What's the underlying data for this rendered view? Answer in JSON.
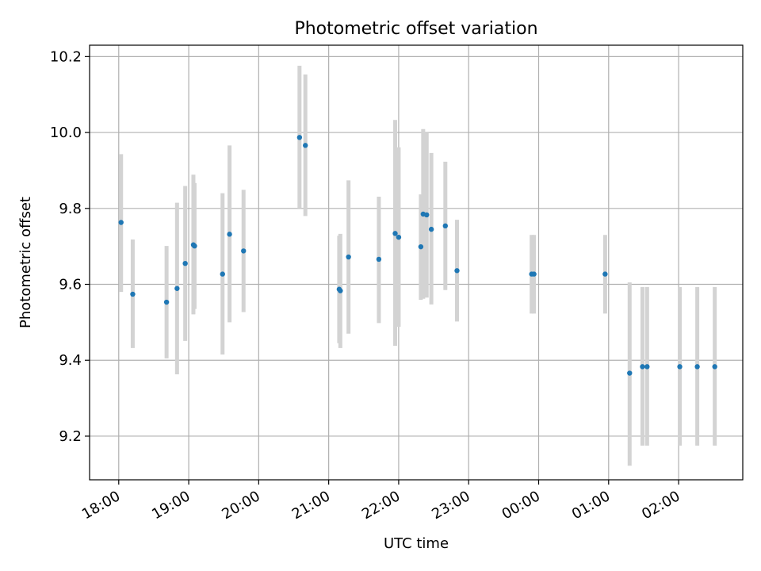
{
  "chart_data": {
    "type": "scatter",
    "title": "Photometric offset variation",
    "xlabel": "UTC time",
    "ylabel": "Photometric offset",
    "x_axis_type": "time",
    "xlim": [
      "17:35",
      "02:55"
    ],
    "ylim": [
      9.085,
      10.23
    ],
    "x_ticks": [
      "18:00",
      "19:00",
      "20:00",
      "21:00",
      "22:00",
      "23:00",
      "00:00",
      "01:00",
      "02:00"
    ],
    "y_ticks": [
      9.2,
      9.4,
      9.6,
      9.8,
      10.0,
      10.2
    ],
    "grid": true,
    "legend": "none",
    "point_color": "#1f77b4",
    "errorbar_color": "#d3d3d3",
    "points": [
      {
        "time": "18:02",
        "y": 9.763,
        "err_low": 9.58,
        "err_high": 9.943
      },
      {
        "time": "18:12",
        "y": 9.574,
        "err_low": 9.432,
        "err_high": 9.718
      },
      {
        "time": "18:41",
        "y": 9.553,
        "err_low": 9.405,
        "err_high": 9.701
      },
      {
        "time": "18:50",
        "y": 9.589,
        "err_low": 9.363,
        "err_high": 9.815
      },
      {
        "time": "18:57",
        "y": 9.655,
        "err_low": 9.451,
        "err_high": 9.859
      },
      {
        "time": "19:04",
        "y": 9.704,
        "err_low": 9.521,
        "err_high": 9.889
      },
      {
        "time": "19:05",
        "y": 9.701,
        "err_low": 9.535,
        "err_high": 9.867
      },
      {
        "time": "19:29",
        "y": 9.627,
        "err_low": 9.415,
        "err_high": 9.84
      },
      {
        "time": "19:35",
        "y": 9.732,
        "err_low": 9.5,
        "err_high": 9.966
      },
      {
        "time": "19:47",
        "y": 9.688,
        "err_low": 9.527,
        "err_high": 9.849
      },
      {
        "time": "20:35",
        "y": 9.987,
        "err_low": 9.8,
        "err_high": 10.176
      },
      {
        "time": "20:40",
        "y": 9.966,
        "err_low": 9.78,
        "err_high": 10.153
      },
      {
        "time": "21:09",
        "y": 9.587,
        "err_low": 9.445,
        "err_high": 9.728
      },
      {
        "time": "21:10",
        "y": 9.583,
        "err_low": 9.432,
        "err_high": 9.733
      },
      {
        "time": "21:17",
        "y": 9.672,
        "err_low": 9.47,
        "err_high": 9.874
      },
      {
        "time": "21:43",
        "y": 9.666,
        "err_low": 9.498,
        "err_high": 9.831
      },
      {
        "time": "21:57",
        "y": 9.734,
        "err_low": 9.438,
        "err_high": 10.033
      },
      {
        "time": "22:00",
        "y": 9.724,
        "err_low": 9.488,
        "err_high": 9.961
      },
      {
        "time": "22:19",
        "y": 9.699,
        "err_low": 9.559,
        "err_high": 9.837
      },
      {
        "time": "22:21",
        "y": 9.785,
        "err_low": 9.562,
        "err_high": 10.009
      },
      {
        "time": "22:24",
        "y": 9.783,
        "err_low": 9.565,
        "err_high": 10.0
      },
      {
        "time": "22:28",
        "y": 9.745,
        "err_low": 9.547,
        "err_high": 9.946
      },
      {
        "time": "22:40",
        "y": 9.754,
        "err_low": 9.585,
        "err_high": 9.923
      },
      {
        "time": "22:50",
        "y": 9.636,
        "err_low": 9.502,
        "err_high": 9.77
      },
      {
        "time": "23:54",
        "y": 9.627,
        "err_low": 9.523,
        "err_high": 9.73
      },
      {
        "time": "23:56",
        "y": 9.627,
        "err_low": 9.523,
        "err_high": 9.73
      },
      {
        "time": "00:57",
        "y": 9.627,
        "err_low": 9.523,
        "err_high": 9.73
      },
      {
        "time": "01:18",
        "y": 9.366,
        "err_low": 9.122,
        "err_high": 9.605
      },
      {
        "time": "01:29",
        "y": 9.383,
        "err_low": 9.175,
        "err_high": 9.593
      },
      {
        "time": "01:33",
        "y": 9.383,
        "err_low": 9.175,
        "err_high": 9.593
      },
      {
        "time": "02:01",
        "y": 9.383,
        "err_low": 9.175,
        "err_high": 9.593
      },
      {
        "time": "02:16",
        "y": 9.383,
        "err_low": 9.175,
        "err_high": 9.593
      },
      {
        "time": "02:31",
        "y": 9.383,
        "err_low": 9.175,
        "err_high": 9.593
      }
    ]
  }
}
